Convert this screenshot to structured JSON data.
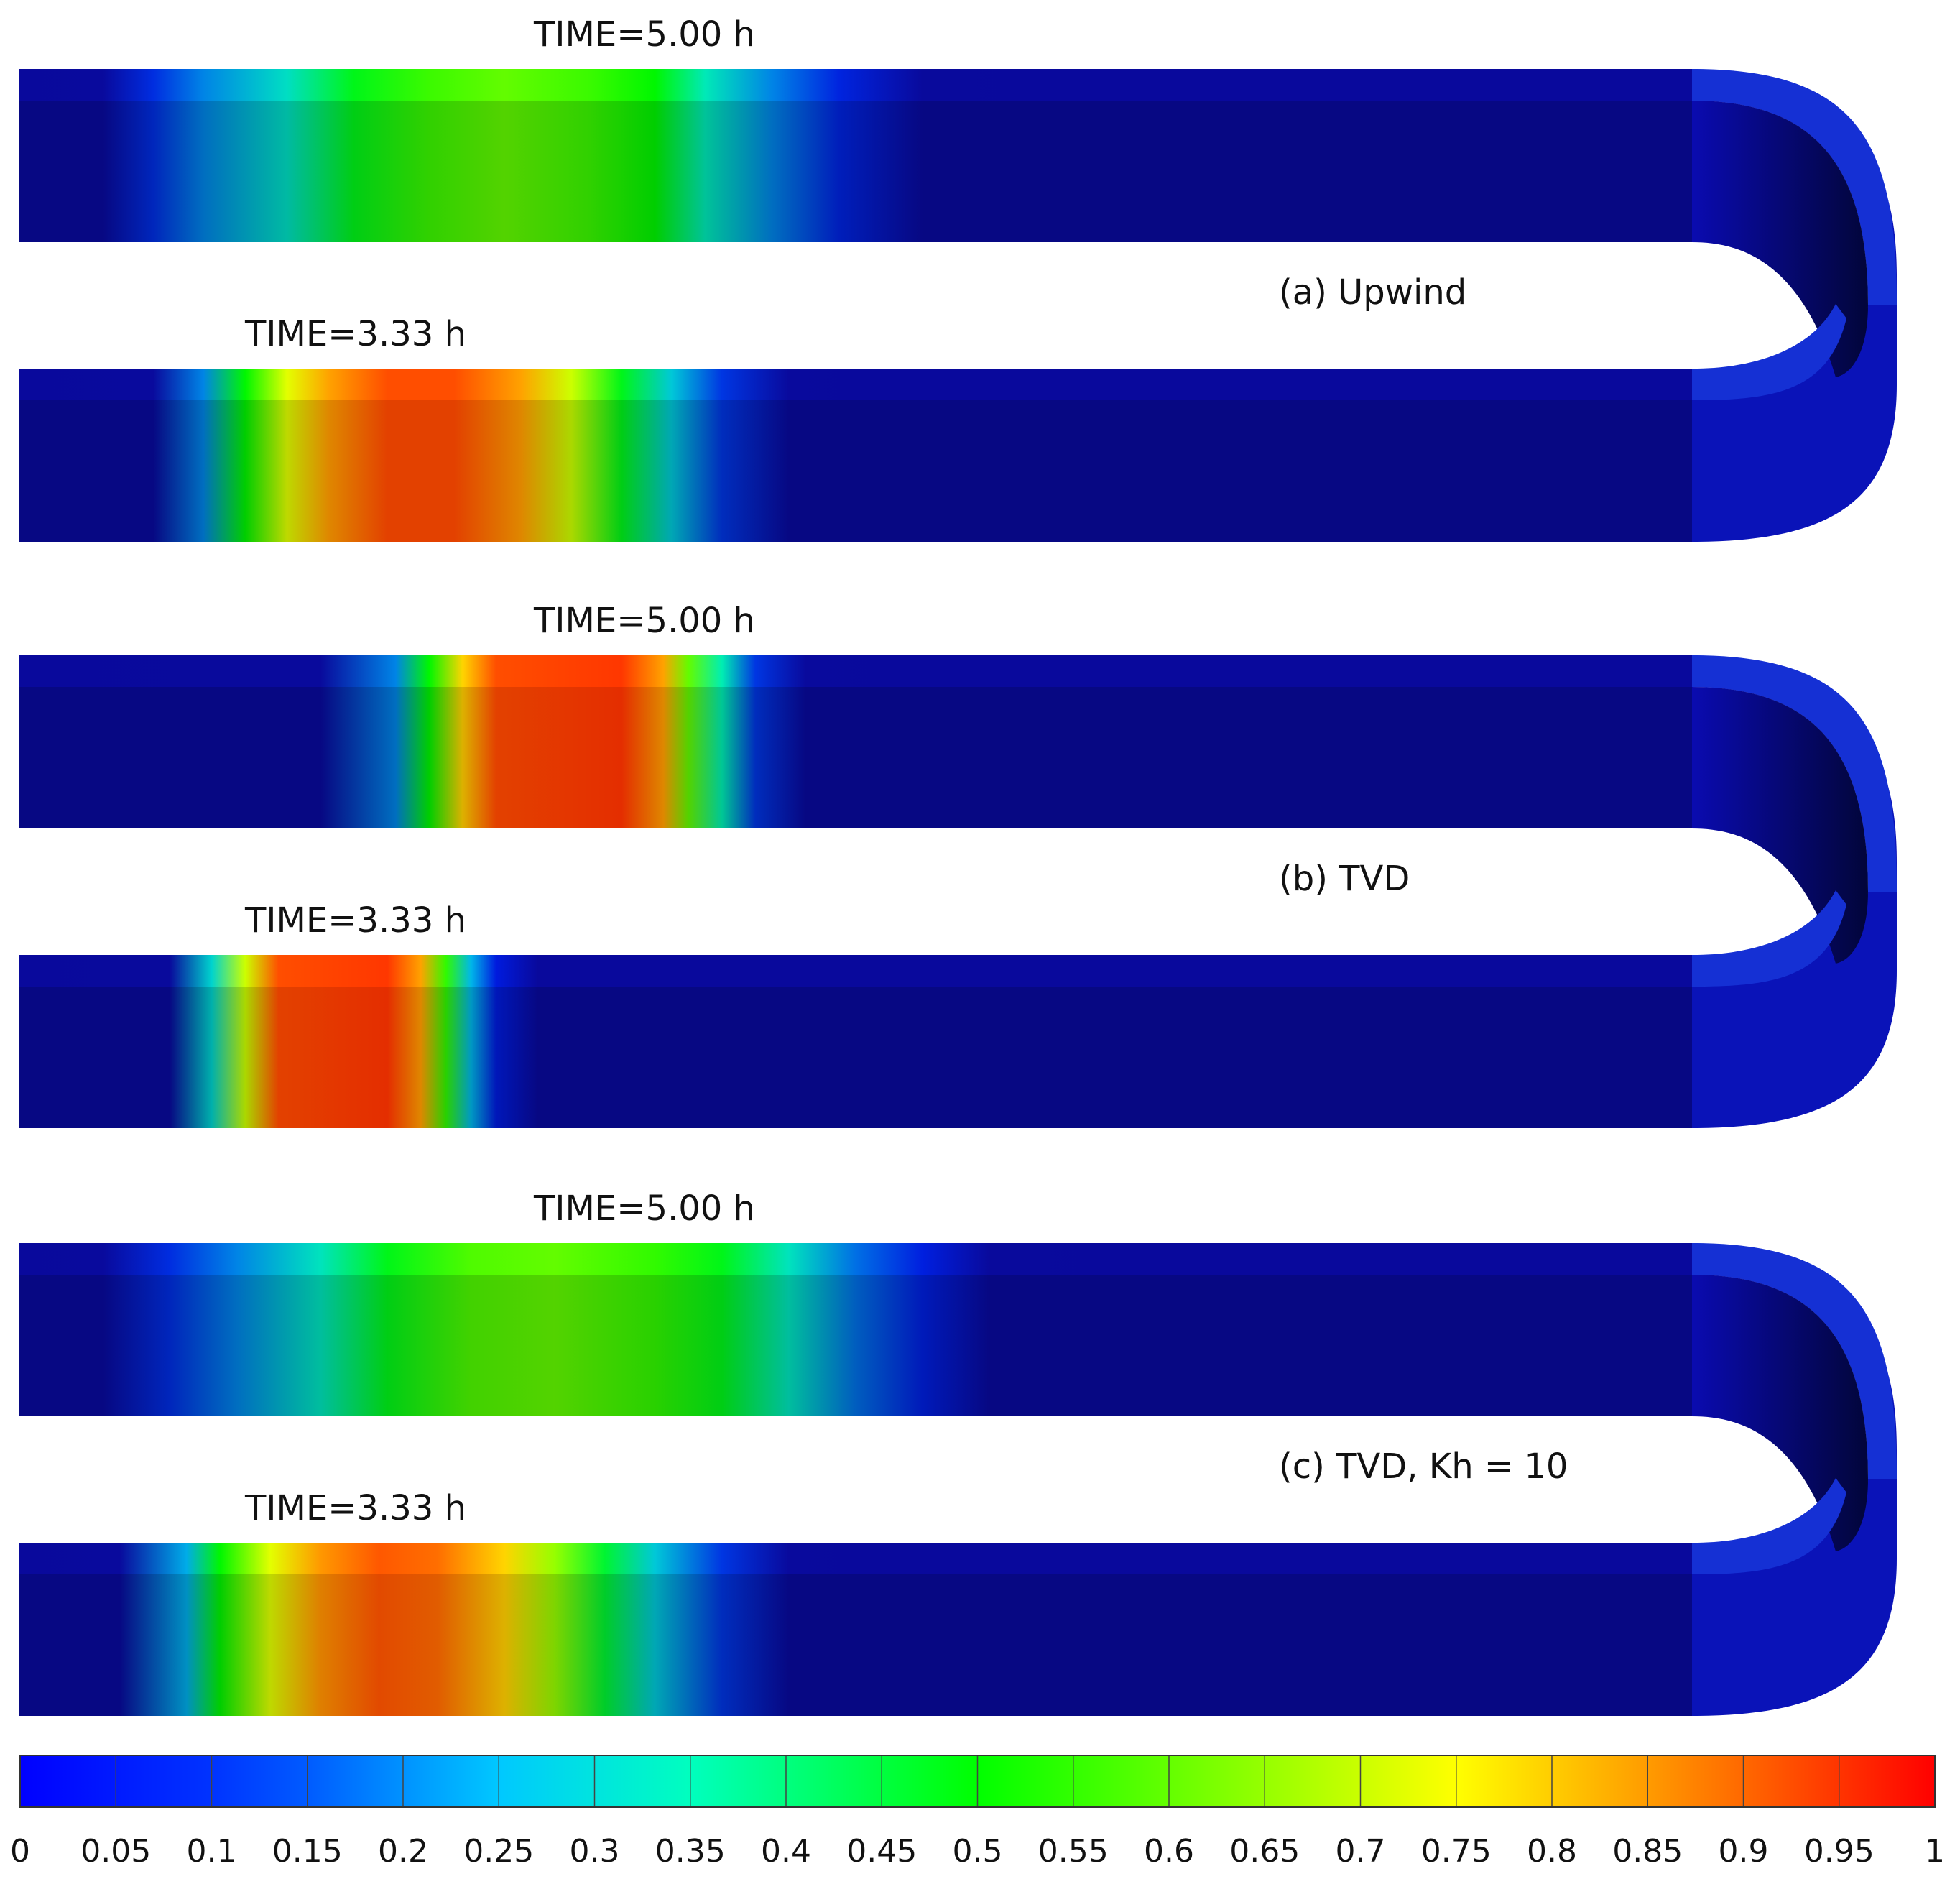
{
  "panels": [
    {
      "caption": "(a) Upwind",
      "time_upper": "TIME=5.00 h",
      "time_lower": "TIME=3.33 h",
      "profile_upper": [
        [
          0,
          0.02
        ],
        [
          0.05,
          0.04
        ],
        [
          0.08,
          0.1
        ],
        [
          0.11,
          0.2
        ],
        [
          0.16,
          0.32
        ],
        [
          0.2,
          0.48
        ],
        [
          0.245,
          0.56
        ],
        [
          0.29,
          0.6
        ],
        [
          0.34,
          0.56
        ],
        [
          0.38,
          0.5
        ],
        [
          0.41,
          0.34
        ],
        [
          0.45,
          0.2
        ],
        [
          0.49,
          0.08
        ],
        [
          0.54,
          0.03
        ],
        [
          0.6,
          0.02
        ],
        [
          1,
          0.02
        ]
      ],
      "profile_lower": [
        [
          0,
          0.02
        ],
        [
          0.08,
          0.04
        ],
        [
          0.11,
          0.2
        ],
        [
          0.135,
          0.5
        ],
        [
          0.16,
          0.72
        ],
        [
          0.185,
          0.85
        ],
        [
          0.22,
          0.93
        ],
        [
          0.26,
          0.93
        ],
        [
          0.3,
          0.85
        ],
        [
          0.33,
          0.7
        ],
        [
          0.36,
          0.48
        ],
        [
          0.39,
          0.28
        ],
        [
          0.42,
          0.12
        ],
        [
          0.46,
          0.04
        ],
        [
          0.5,
          0.02
        ],
        [
          1,
          0.02
        ]
      ]
    },
    {
      "caption": "(b) TVD",
      "time_upper": "TIME=5.00 h",
      "time_lower": "TIME=3.33 h",
      "profile_upper": [
        [
          0,
          0.02
        ],
        [
          0.18,
          0.03
        ],
        [
          0.225,
          0.2
        ],
        [
          0.245,
          0.5
        ],
        [
          0.265,
          0.8
        ],
        [
          0.285,
          0.93
        ],
        [
          0.36,
          0.95
        ],
        [
          0.385,
          0.85
        ],
        [
          0.4,
          0.6
        ],
        [
          0.42,
          0.35
        ],
        [
          0.44,
          0.12
        ],
        [
          0.47,
          0.04
        ],
        [
          0.52,
          0.02
        ],
        [
          1,
          0.02
        ]
      ],
      "profile_lower": [
        [
          0,
          0.02
        ],
        [
          0.09,
          0.03
        ],
        [
          0.115,
          0.3
        ],
        [
          0.135,
          0.7
        ],
        [
          0.155,
          0.93
        ],
        [
          0.22,
          0.95
        ],
        [
          0.24,
          0.85
        ],
        [
          0.255,
          0.55
        ],
        [
          0.27,
          0.25
        ],
        [
          0.285,
          0.06
        ],
        [
          0.31,
          0.02
        ],
        [
          1,
          0.02
        ]
      ]
    },
    {
      "caption": "(c) TVD, Kh = 10",
      "time_upper": "TIME=5.00 h",
      "time_lower": "TIME=3.33 h",
      "profile_upper": [
        [
          0,
          0.02
        ],
        [
          0.05,
          0.04
        ],
        [
          0.09,
          0.1
        ],
        [
          0.13,
          0.2
        ],
        [
          0.18,
          0.33
        ],
        [
          0.22,
          0.48
        ],
        [
          0.27,
          0.58
        ],
        [
          0.32,
          0.6
        ],
        [
          0.38,
          0.55
        ],
        [
          0.42,
          0.48
        ],
        [
          0.46,
          0.33
        ],
        [
          0.5,
          0.18
        ],
        [
          0.54,
          0.07
        ],
        [
          0.58,
          0.03
        ],
        [
          0.65,
          0.02
        ],
        [
          1,
          0.02
        ]
      ],
      "profile_lower": [
        [
          0,
          0.02
        ],
        [
          0.06,
          0.04
        ],
        [
          0.1,
          0.24
        ],
        [
          0.12,
          0.5
        ],
        [
          0.15,
          0.72
        ],
        [
          0.18,
          0.86
        ],
        [
          0.215,
          0.92
        ],
        [
          0.25,
          0.9
        ],
        [
          0.29,
          0.8
        ],
        [
          0.32,
          0.65
        ],
        [
          0.35,
          0.46
        ],
        [
          0.38,
          0.28
        ],
        [
          0.42,
          0.12
        ],
        [
          0.46,
          0.04
        ],
        [
          0.5,
          0.02
        ],
        [
          1,
          0.02
        ]
      ]
    }
  ],
  "colorbar": {
    "min": 0,
    "max": 1,
    "step": 0.05,
    "tick_labels": [
      "0",
      "0.05",
      "0.1",
      "0.15",
      "0.2",
      "0.25",
      "0.3",
      "0.35",
      "0.4",
      "0.45",
      "0.5",
      "0.55",
      "0.6",
      "0.65",
      "0.7",
      "0.75",
      "0.8",
      "0.85",
      "0.9",
      "0.95",
      "1"
    ]
  },
  "colors": {
    "background_field": "#0a0bb5",
    "top_face": "#1230d8",
    "outline": "#333333"
  }
}
